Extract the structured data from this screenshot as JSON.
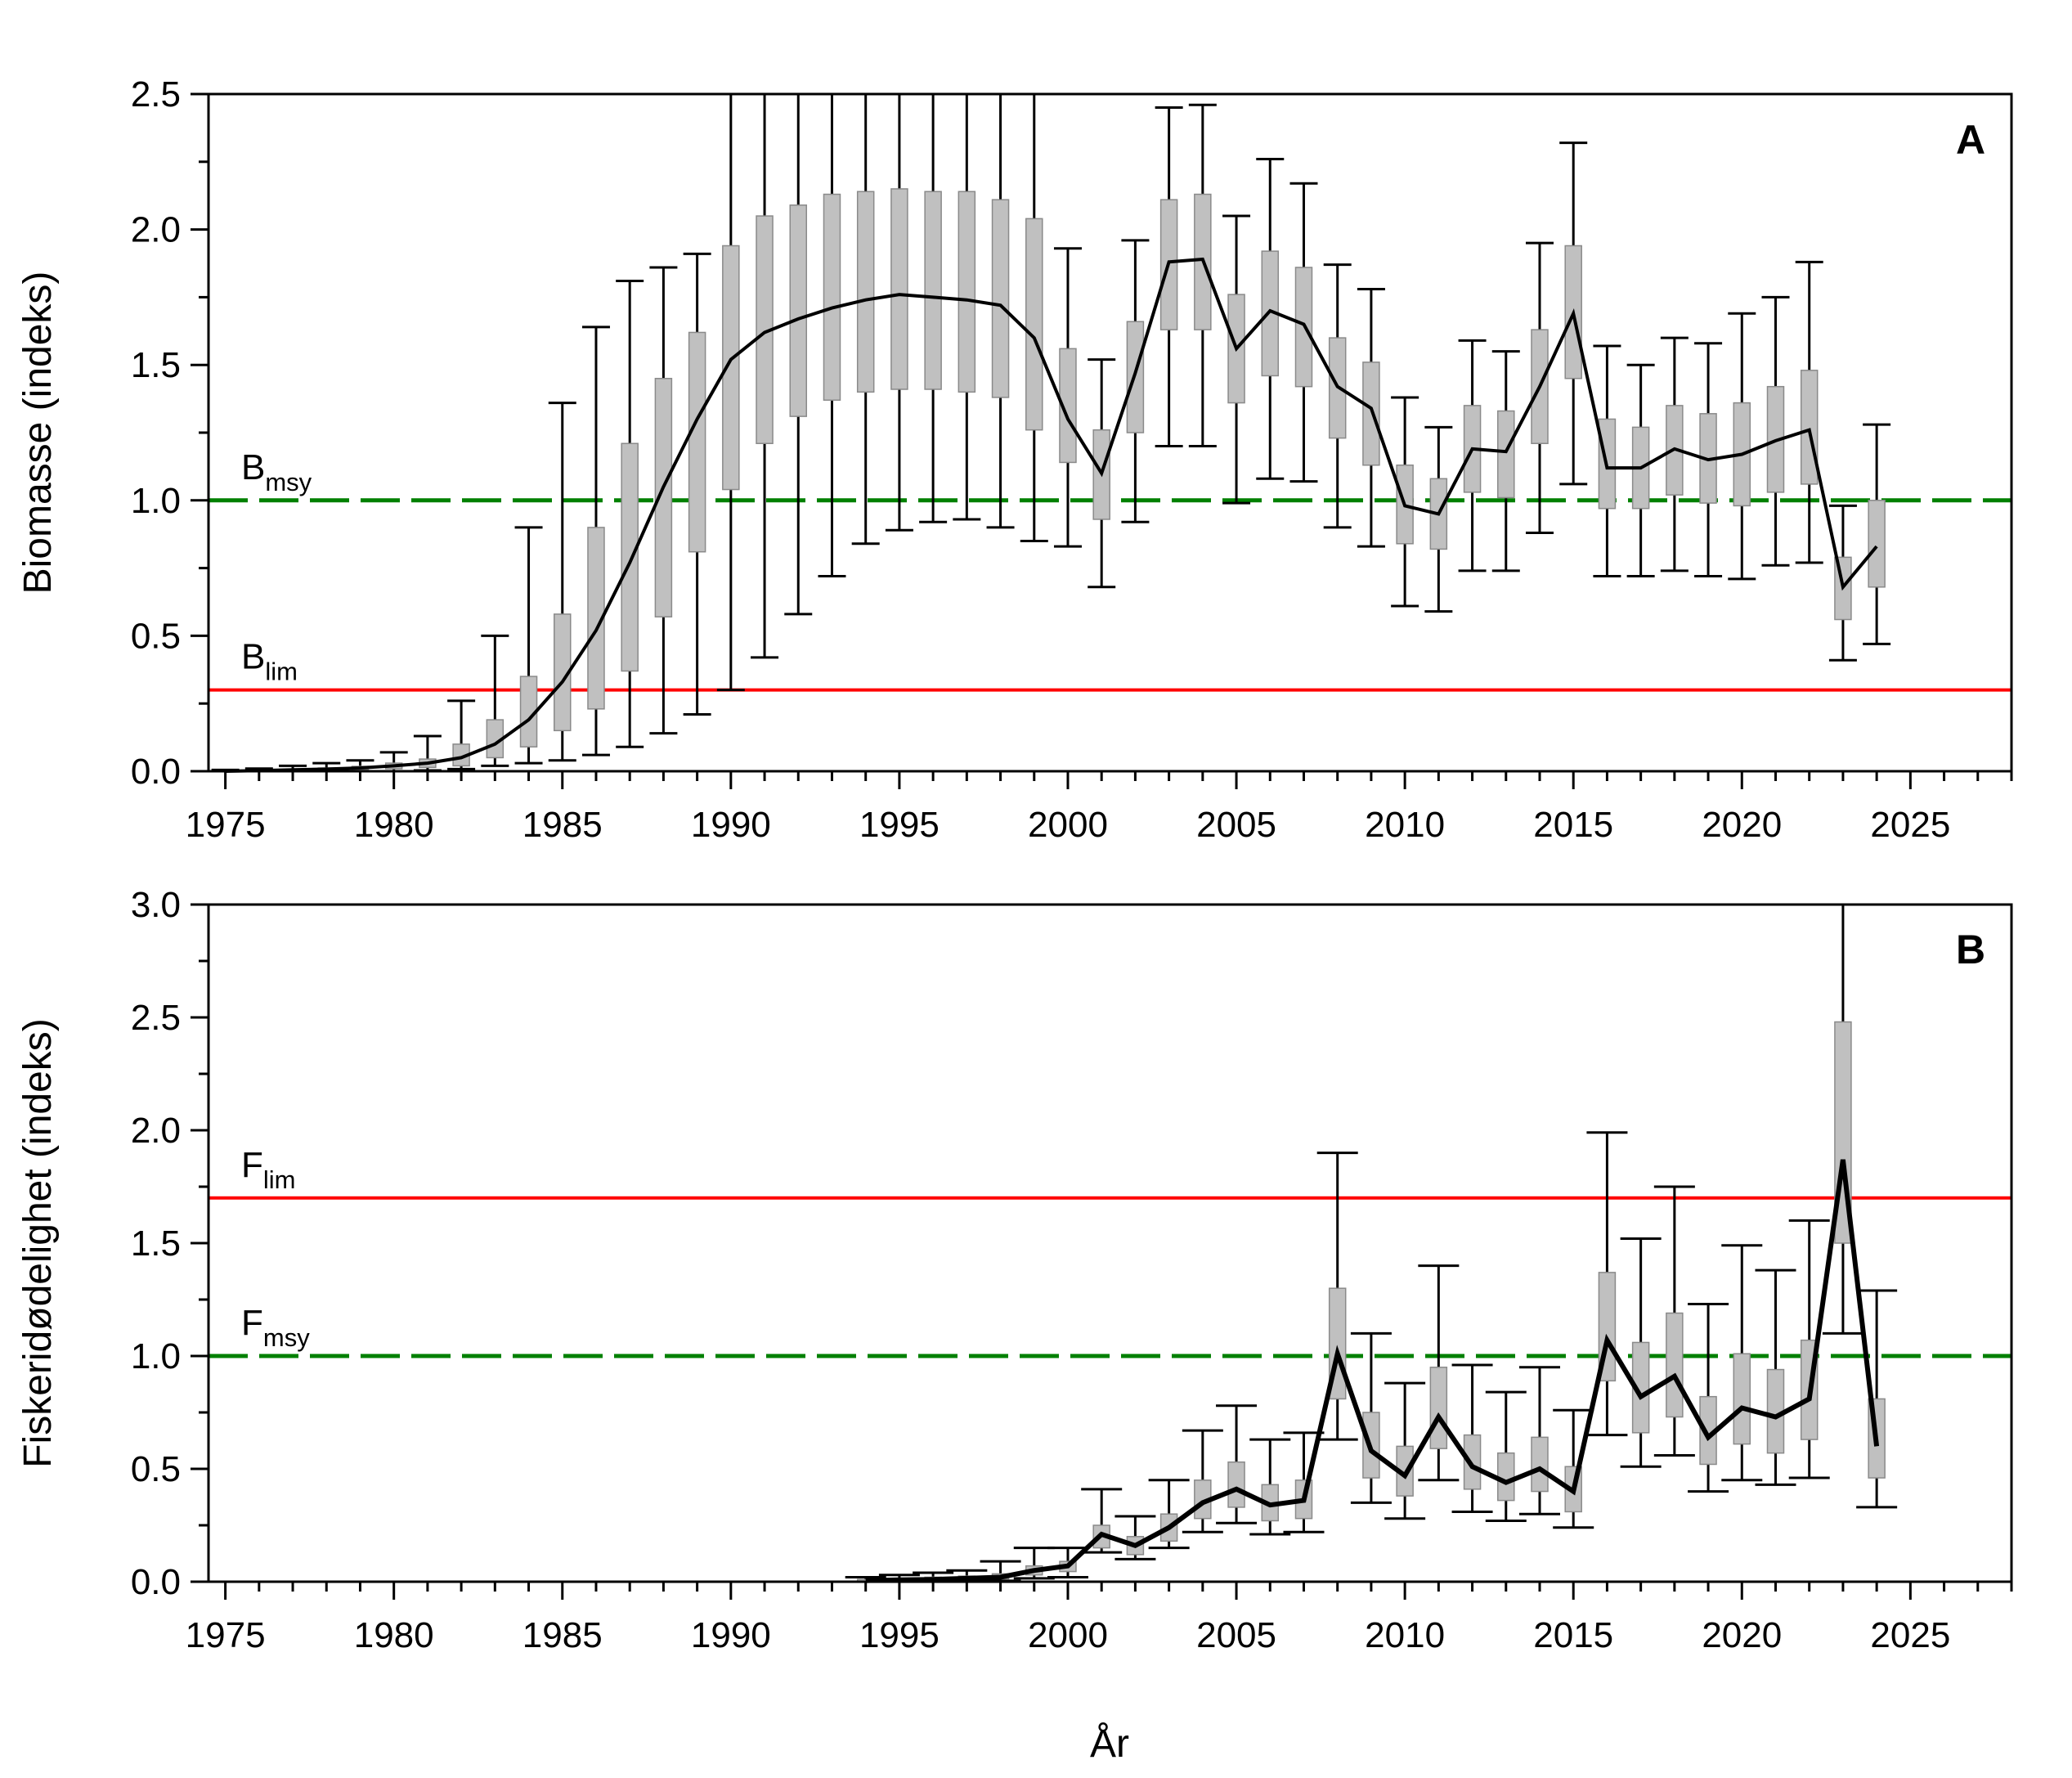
{
  "figure": {
    "xlabel": "År",
    "colors": {
      "box": "#c0c0c0",
      "line": "#000000",
      "lim": "#ff0000",
      "msy": "#008000"
    }
  },
  "chart_data": [
    {
      "type": "box",
      "panel": "A",
      "ylabel": "Biomasse (indeks)",
      "xlim": [
        1974.5,
        2028
      ],
      "ylim": [
        0,
        2.5
      ],
      "xticks": [
        "1975",
        "1980",
        "1985",
        "1990",
        "1995",
        "2000",
        "2005",
        "2010",
        "2015",
        "2020",
        "2025"
      ],
      "yticks": [
        "0.0",
        "0.5",
        "1.0",
        "1.5",
        "2.0",
        "2.5"
      ],
      "reference_lines": [
        {
          "name": "B",
          "sub": "msy",
          "value": 1.0,
          "color": "#008000",
          "style": "dash"
        },
        {
          "name": "B",
          "sub": "lim",
          "value": 0.3,
          "color": "#ff0000",
          "style": "solid"
        }
      ],
      "years": [
        1975,
        1976,
        1977,
        1978,
        1979,
        1980,
        1981,
        1982,
        1983,
        1984,
        1985,
        1986,
        1987,
        1988,
        1989,
        1990,
        1991,
        1992,
        1993,
        1994,
        1995,
        1996,
        1997,
        1998,
        1999,
        2000,
        2001,
        2002,
        2003,
        2004,
        2005,
        2006,
        2007,
        2008,
        2009,
        2010,
        2011,
        2012,
        2013,
        2014,
        2015,
        2016,
        2017,
        2018,
        2019,
        2020,
        2021,
        2022,
        2023,
        2024
      ],
      "median": [
        0.0,
        0.002,
        0.005,
        0.008,
        0.012,
        0.02,
        0.03,
        0.05,
        0.1,
        0.19,
        0.33,
        0.52,
        0.77,
        1.05,
        1.3,
        1.52,
        1.62,
        1.67,
        1.71,
        1.74,
        1.76,
        1.75,
        1.74,
        1.72,
        1.6,
        1.3,
        1.1,
        1.47,
        1.88,
        1.89,
        1.56,
        1.7,
        1.65,
        1.42,
        1.34,
        0.98,
        0.95,
        1.19,
        1.18,
        1.42,
        1.69,
        1.12,
        1.12,
        1.19,
        1.15,
        1.17,
        1.22,
        1.26,
        0.68,
        0.83
      ],
      "q1": [
        0.0,
        0.001,
        0.002,
        0.004,
        0.006,
        0.009,
        0.014,
        0.02,
        0.05,
        0.09,
        0.15,
        0.23,
        0.37,
        0.57,
        0.81,
        1.04,
        1.21,
        1.31,
        1.37,
        1.4,
        1.41,
        1.41,
        1.4,
        1.38,
        1.26,
        1.14,
        0.93,
        1.25,
        1.63,
        1.63,
        1.36,
        1.46,
        1.42,
        1.23,
        1.13,
        0.84,
        0.82,
        1.03,
        1.01,
        1.21,
        1.45,
        0.97,
        0.97,
        1.02,
        0.99,
        0.98,
        1.03,
        1.06,
        0.56,
        0.68
      ],
      "q3": [
        0.001,
        0.003,
        0.008,
        0.012,
        0.018,
        0.03,
        0.045,
        0.1,
        0.19,
        0.35,
        0.58,
        0.9,
        1.21,
        1.45,
        1.62,
        1.94,
        2.05,
        2.09,
        2.13,
        2.14,
        2.15,
        2.14,
        2.14,
        2.11,
        2.04,
        1.56,
        1.26,
        1.66,
        2.11,
        2.13,
        1.76,
        1.92,
        1.86,
        1.6,
        1.51,
        1.13,
        1.08,
        1.35,
        1.33,
        1.63,
        1.94,
        1.3,
        1.27,
        1.35,
        1.32,
        1.36,
        1.42,
        1.48,
        0.79,
        1.0
      ],
      "low": [
        0.0,
        0.0,
        0.0,
        0.0,
        0.0,
        0.0,
        0.003,
        0.008,
        0.02,
        0.03,
        0.04,
        0.06,
        0.09,
        0.14,
        0.21,
        0.3,
        0.42,
        0.58,
        0.72,
        0.84,
        0.89,
        0.92,
        0.93,
        0.9,
        0.85,
        0.83,
        0.68,
        0.92,
        1.2,
        1.2,
        0.99,
        1.08,
        1.07,
        0.9,
        0.83,
        0.61,
        0.59,
        0.74,
        0.74,
        0.88,
        1.06,
        0.72,
        0.72,
        0.74,
        0.72,
        0.71,
        0.76,
        0.77,
        0.41,
        0.47
      ],
      "high": [
        0.005,
        0.01,
        0.02,
        0.03,
        0.04,
        0.07,
        0.13,
        0.26,
        0.5,
        0.9,
        1.36,
        1.64,
        1.81,
        1.86,
        1.91,
        2.5,
        2.5,
        2.5,
        2.5,
        2.5,
        2.5,
        2.5,
        2.5,
        2.5,
        2.5,
        1.93,
        1.52,
        1.96,
        2.45,
        2.46,
        2.05,
        2.26,
        2.17,
        1.87,
        1.78,
        1.38,
        1.27,
        1.59,
        1.55,
        1.95,
        2.32,
        1.57,
        1.5,
        1.6,
        1.58,
        1.69,
        1.75,
        1.88,
        0.98,
        1.28
      ]
    },
    {
      "type": "box",
      "panel": "B",
      "ylabel": "Fiskeridødelighet (indeks)",
      "xlim": [
        1974.5,
        2028
      ],
      "ylim": [
        0,
        3.0
      ],
      "xticks": [
        "1975",
        "1980",
        "1985",
        "1990",
        "1995",
        "2000",
        "2005",
        "2010",
        "2015",
        "2020",
        "2025"
      ],
      "yticks": [
        "0.0",
        "0.5",
        "1.0",
        "1.5",
        "2.0",
        "2.5",
        "3.0"
      ],
      "reference_lines": [
        {
          "name": "F",
          "sub": "lim",
          "value": 1.7,
          "color": "#ff0000",
          "style": "solid"
        },
        {
          "name": "F",
          "sub": "msy",
          "value": 1.0,
          "color": "#008000",
          "style": "dash"
        }
      ],
      "years": [
        1994,
        1995,
        1996,
        1997,
        1998,
        1999,
        2000,
        2001,
        2002,
        2003,
        2004,
        2005,
        2006,
        2007,
        2008,
        2009,
        2010,
        2011,
        2012,
        2013,
        2014,
        2015,
        2016,
        2017,
        2018,
        2019,
        2020,
        2021,
        2022,
        2023,
        2024
      ],
      "median": [
        0.005,
        0.008,
        0.01,
        0.015,
        0.02,
        0.05,
        0.07,
        0.21,
        0.16,
        0.24,
        0.35,
        0.41,
        0.34,
        0.36,
        1.01,
        0.58,
        0.47,
        0.73,
        0.51,
        0.44,
        0.5,
        0.4,
        1.07,
        0.82,
        0.91,
        0.64,
        0.77,
        0.73,
        0.81,
        1.87,
        0.6
      ],
      "q1": [
        0.002,
        0.004,
        0.006,
        0.008,
        0.012,
        0.03,
        0.045,
        0.15,
        0.12,
        0.18,
        0.28,
        0.33,
        0.27,
        0.28,
        0.81,
        0.46,
        0.38,
        0.59,
        0.41,
        0.36,
        0.4,
        0.31,
        0.89,
        0.66,
        0.73,
        0.52,
        0.61,
        0.57,
        0.63,
        1.5,
        0.46
      ],
      "q3": [
        0.01,
        0.015,
        0.02,
        0.025,
        0.035,
        0.07,
        0.09,
        0.25,
        0.2,
        0.3,
        0.45,
        0.53,
        0.43,
        0.45,
        1.3,
        0.75,
        0.6,
        0.95,
        0.65,
        0.57,
        0.64,
        0.51,
        1.37,
        1.06,
        1.19,
        0.82,
        1.01,
        0.94,
        1.07,
        2.48,
        0.81
      ],
      "low": [
        0.0,
        0.0,
        0.001,
        0.002,
        0.004,
        0.015,
        0.02,
        0.13,
        0.1,
        0.15,
        0.22,
        0.26,
        0.21,
        0.22,
        0.63,
        0.35,
        0.28,
        0.45,
        0.31,
        0.27,
        0.3,
        0.24,
        0.65,
        0.51,
        0.56,
        0.4,
        0.45,
        0.43,
        0.46,
        1.1,
        0.33
      ],
      "high": [
        0.02,
        0.03,
        0.04,
        0.05,
        0.09,
        0.15,
        0.15,
        0.41,
        0.29,
        0.45,
        0.67,
        0.78,
        0.63,
        0.66,
        1.9,
        1.1,
        0.88,
        1.4,
        0.96,
        0.84,
        0.95,
        0.76,
        1.99,
        1.52,
        1.75,
        1.23,
        1.49,
        1.38,
        1.6,
        3.0,
        1.29
      ]
    }
  ]
}
